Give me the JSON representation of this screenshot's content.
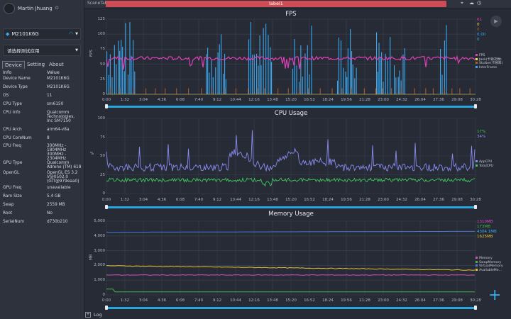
{
  "sidebar": {
    "user_name": "Martin Jhuang",
    "device_select": "M2101K6G",
    "app_select": "请选择测试应用",
    "tabs": [
      "Device",
      "Setting",
      "About"
    ],
    "table_header": {
      "col1": "Info",
      "col2": "Value"
    },
    "rows": [
      {
        "k": "Device Name",
        "v": "M2101K6G"
      },
      {
        "k": "Device Type",
        "v": "M2101K6G"
      },
      {
        "k": "OS",
        "v": "11"
      },
      {
        "k": "CPU Type",
        "v": "sm6150"
      },
      {
        "k": "CPU Info",
        "v": "Qualcomm Technologies, Inc SM7150"
      },
      {
        "k": "CPU Arch",
        "v": "arm64-v8a"
      },
      {
        "k": "CPU CoreNum",
        "v": "8"
      },
      {
        "k": "CPU Freq",
        "v": "300MHz - 1804MHz 300MHz - 2304MHz"
      },
      {
        "k": "GPU Type",
        "v": "Qualcomm Adreno (TM) 618"
      },
      {
        "k": "OpenGL",
        "v": "OpenGL ES 3.2 V@0502.0 (GIT@979eaa0)"
      },
      {
        "k": "GPU Freq",
        "v": "unavailable"
      },
      {
        "k": "Ram Size",
        "v": "5.4 GB"
      },
      {
        "k": "Swap",
        "v": "2559 MB"
      },
      {
        "k": "Root",
        "v": "No"
      },
      {
        "k": "SerialNum",
        "v": "d730b210"
      }
    ]
  },
  "topbar": {
    "scene_tab": "SceneTab",
    "label": "label1"
  },
  "footer": {
    "log_label": "Log"
  },
  "colors": {
    "fps": "#e040b8",
    "jank": "#f0e040",
    "stutter": "#b06030",
    "interframe": "#3aa8ee",
    "app_cpu": "#8a8cf0",
    "total_cpu": "#3ecb5a",
    "memory": "#d050c0",
    "swap": "#40b848",
    "virtual": "#4a78d8",
    "available": "#e8c030"
  },
  "x_ticks": [
    "0:00",
    "1:32",
    "3:04",
    "4:36",
    "6:08",
    "7:40",
    "9:12",
    "10:44",
    "12:16",
    "13:48",
    "15:20",
    "16:52",
    "18:24",
    "19:56",
    "21:28",
    "23:00",
    "24:32",
    "26:04",
    "27:36",
    "29:08",
    "30:28"
  ],
  "charts": {
    "fps": {
      "title": "FPS",
      "ylabel": "FPS",
      "yticks": [
        "125",
        "100",
        "75",
        "50",
        "25",
        "0"
      ],
      "values": [
        "61",
        "0",
        "0",
        "0.00",
        "0"
      ],
      "legend": [
        "FPS",
        "Jank(卡顿次数)",
        "Stutter(卡顿率)",
        "InterFrame"
      ]
    },
    "cpu": {
      "title": "CPU Usage",
      "ylabel": "%",
      "yticks": [
        "100",
        "75",
        "50",
        "25",
        "0"
      ],
      "values": [
        "17%",
        "34%"
      ],
      "legend": [
        "AppCPU",
        "TotalCPU"
      ]
    },
    "mem": {
      "title": "Memory Usage",
      "ylabel": "MB",
      "yticks": [
        "5,000",
        "4,000",
        "3,000",
        "2,000",
        "1,000",
        "0"
      ],
      "values": [
        "1310MB",
        "173MB",
        "4304 1MB",
        "1625MB"
      ],
      "legend": [
        "Memory",
        "SwapMemory",
        "VirtualMemory",
        "AvailableMe..."
      ]
    }
  }
}
